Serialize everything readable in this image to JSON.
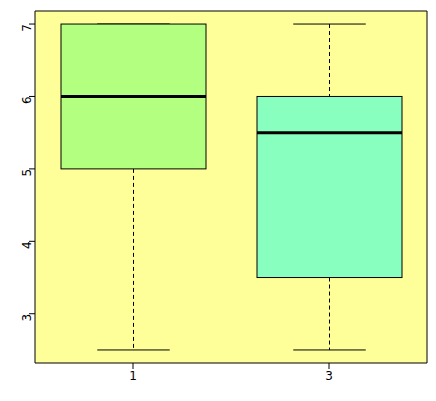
{
  "chart_data": {
    "type": "boxplot",
    "categories": [
      "1",
      "3"
    ],
    "stats": [
      {
        "min": 2.5,
        "q1": 5,
        "median": 6,
        "q3": 7,
        "max": 7
      },
      {
        "min": 2.5,
        "q1": 3.5,
        "median": 5.5,
        "q3": 6,
        "max": 7
      }
    ],
    "colors": [
      "#b3ff80",
      "#88ffbf"
    ],
    "ylim": [
      2.32,
      7.18
    ],
    "yticks": [
      3,
      4,
      5,
      6,
      7
    ]
  }
}
